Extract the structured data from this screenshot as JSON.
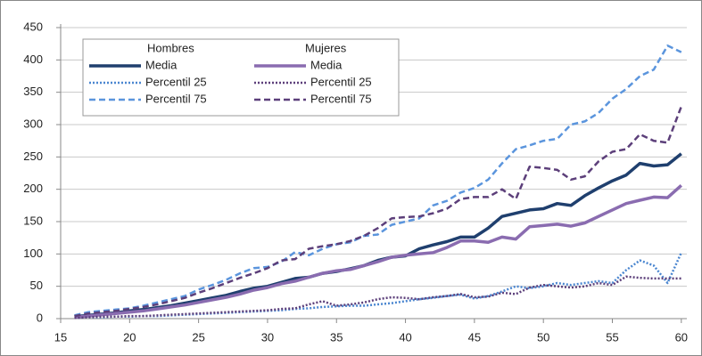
{
  "chart_data": {
    "type": "line",
    "legend_titles": [
      "Hombres",
      "Mujeres"
    ],
    "x": [
      16,
      17,
      18,
      19,
      20,
      21,
      22,
      23,
      24,
      25,
      26,
      27,
      28,
      29,
      30,
      31,
      32,
      33,
      34,
      35,
      36,
      37,
      38,
      39,
      40,
      41,
      42,
      43,
      44,
      45,
      46,
      47,
      48,
      49,
      50,
      51,
      52,
      53,
      54,
      55,
      56,
      57,
      58,
      59,
      60
    ],
    "series": [
      {
        "name": "Media",
        "color": "#1f3f6e",
        "dash": "solid",
        "values": [
          3,
          5,
          7,
          9,
          12,
          14,
          17,
          20,
          24,
          28,
          32,
          36,
          42,
          47,
          50,
          56,
          62,
          64,
          70,
          73,
          77,
          82,
          90,
          95,
          97,
          108,
          114,
          119,
          126,
          126,
          140,
          158,
          163,
          168,
          170,
          178,
          175,
          190,
          202,
          213,
          222,
          240,
          236,
          238,
          255
        ]
      },
      {
        "name": "Percentil 25",
        "color": "#4a86d0",
        "dash": "dotted",
        "values": [
          1,
          2,
          2,
          3,
          3,
          4,
          4,
          5,
          6,
          7,
          8,
          9,
          10,
          11,
          12,
          13,
          15,
          16,
          18,
          19,
          20,
          20,
          22,
          24,
          27,
          30,
          32,
          35,
          37,
          31,
          35,
          42,
          50,
          47,
          50,
          55,
          52,
          55,
          58,
          55,
          75,
          90,
          82,
          55,
          102
        ]
      },
      {
        "name": "Percentil 75",
        "color": "#5b95dd",
        "dash": "dashed",
        "values": [
          5,
          10,
          12,
          14,
          16,
          20,
          25,
          30,
          35,
          45,
          52,
          60,
          70,
          78,
          80,
          88,
          103,
          98,
          108,
          115,
          118,
          128,
          130,
          145,
          150,
          155,
          175,
          182,
          195,
          202,
          215,
          240,
          262,
          268,
          275,
          278,
          300,
          305,
          318,
          340,
          355,
          375,
          385,
          422,
          412
        ]
      },
      {
        "name": "Media",
        "color": "#8a6cb0",
        "dash": "solid",
        "values": [
          2,
          4,
          6,
          8,
          10,
          12,
          15,
          18,
          21,
          25,
          29,
          33,
          38,
          44,
          48,
          54,
          58,
          64,
          70,
          74,
          76,
          82,
          88,
          95,
          98,
          100,
          102,
          110,
          120,
          120,
          118,
          126,
          123,
          142,
          144,
          146,
          143,
          148,
          158,
          168,
          178,
          183,
          188,
          187,
          206
        ]
      },
      {
        "name": "Percentil 25",
        "color": "#5c3f7a",
        "dash": "dotted",
        "values": [
          1,
          2,
          3,
          3,
          4,
          4,
          5,
          6,
          7,
          8,
          9,
          10,
          11,
          12,
          13,
          15,
          16,
          22,
          27,
          20,
          22,
          25,
          30,
          33,
          32,
          30,
          33,
          35,
          38,
          33,
          34,
          40,
          38,
          48,
          52,
          50,
          48,
          50,
          55,
          52,
          65,
          63,
          62,
          62,
          62
        ]
      },
      {
        "name": "Percentil 75",
        "color": "#5c3f7a",
        "dash": "dashed",
        "values": [
          4,
          8,
          10,
          12,
          15,
          18,
          22,
          27,
          32,
          40,
          47,
          55,
          63,
          70,
          78,
          90,
          92,
          108,
          112,
          115,
          120,
          128,
          140,
          155,
          157,
          158,
          163,
          170,
          185,
          188,
          188,
          200,
          185,
          235,
          233,
          230,
          215,
          220,
          243,
          258,
          262,
          285,
          275,
          272,
          328
        ]
      }
    ],
    "xlim": [
      15,
      60.4
    ],
    "xticks": [
      15,
      20,
      25,
      30,
      35,
      40,
      45,
      50,
      55,
      60
    ],
    "ylim": [
      0,
      450
    ],
    "yticks": [
      0,
      50,
      100,
      150,
      200,
      250,
      300,
      350,
      400,
      450
    ],
    "grid": true
  }
}
